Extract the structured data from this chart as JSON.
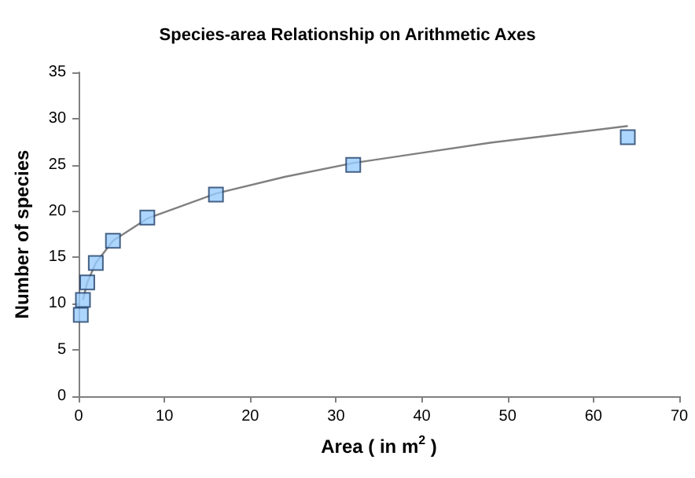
{
  "chart_data": {
    "type": "scatter",
    "title": "Species-area Relationship on Arithmetic Axes",
    "xlabel": "Area ( in m$^{2}$ )",
    "ylabel": "Number of species",
    "series": [
      {
        "color": "#99ccff",
        "marker": "square",
        "x": [
          0.25,
          0.5,
          1,
          2,
          4,
          8,
          16,
          32,
          64
        ],
        "values": [
          8.8,
          10.4,
          12.3,
          14.4,
          16.8,
          19.3,
          21.8,
          25,
          28
        ]
      },
      {
        "type": "line",
        "color": "#808080",
        "marker": "none",
        "line_style": "solid",
        "x": [
          0.5,
          1,
          2,
          4,
          8,
          16,
          24,
          32,
          48,
          64
        ],
        "values": [
          10.4,
          12.3,
          14.4,
          16.8,
          19.2,
          21.9,
          23.7,
          25.2,
          27.4,
          29.2
        ]
      }
    ],
    "xlim": [
      0,
      70
    ],
    "xticks": [
      0,
      10,
      20,
      30,
      40,
      50,
      60,
      70
    ],
    "ylim": [
      0,
      35
    ],
    "yticks": [
      0,
      5,
      10,
      15,
      20,
      25,
      30,
      35
    ],
    "grid": false
  }
}
